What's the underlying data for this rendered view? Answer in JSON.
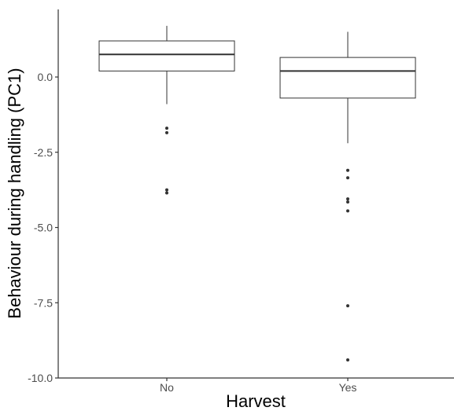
{
  "chart_data": {
    "type": "boxplot",
    "title": "",
    "xlabel": "Harvest",
    "ylabel": "Behaviour during handling (PC1)",
    "ylim": [
      -10.0,
      2.2
    ],
    "yticks": [
      0.0,
      -2.5,
      -5.0,
      -7.5,
      -10.0
    ],
    "ytick_labels": [
      "0.0",
      "-2.5",
      "-5.0",
      "-7.5",
      "-10.0"
    ],
    "grid": false,
    "legend": "none",
    "categories": [
      "No",
      "Yes"
    ],
    "boxes": [
      {
        "category": "No",
        "whisker_low": -0.9,
        "q1": 0.2,
        "median": 0.75,
        "q3": 1.2,
        "whisker_high": 1.7,
        "outliers": [
          -1.7,
          -1.85,
          -3.75,
          -3.85
        ]
      },
      {
        "category": "Yes",
        "whisker_low": -2.2,
        "q1": -0.7,
        "median": 0.2,
        "q3": 0.65,
        "whisker_high": 1.5,
        "outliers": [
          -3.1,
          -3.35,
          -4.05,
          -4.15,
          -4.45,
          -7.6,
          -9.4
        ]
      }
    ],
    "colors": {
      "box_fill": "#ffffff",
      "box_stroke": "#333333",
      "median": "#333333",
      "axis": "#333333",
      "outlier": "#333333"
    }
  }
}
